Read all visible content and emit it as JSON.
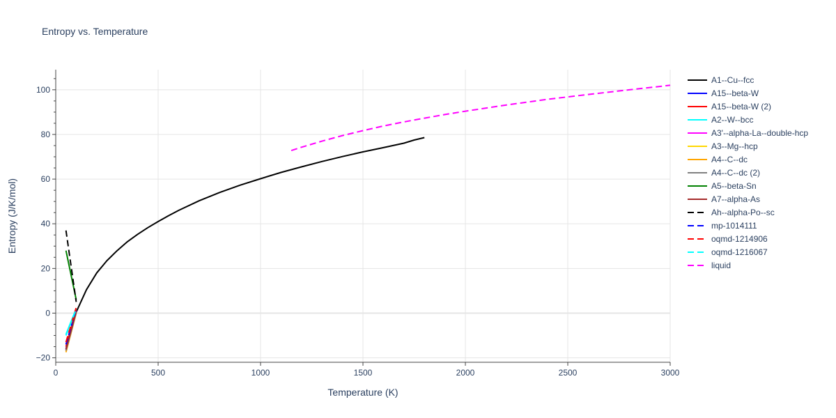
{
  "chart_data": {
    "type": "line",
    "title": "Entropy vs. Temperature",
    "xlabel": "Temperature (K)",
    "ylabel": "Entropy (J/K/mol)",
    "xlim": [
      0,
      3000
    ],
    "ylim": [
      -22,
      109
    ],
    "xticks": [
      0,
      500,
      1000,
      1500,
      2000,
      2500,
      3000
    ],
    "xtick_labels": [
      "0",
      "500",
      "1000",
      "1500",
      "2000",
      "2500",
      "3000"
    ],
    "yticks": [
      -20,
      0,
      20,
      40,
      60,
      80,
      100
    ],
    "ytick_labels": [
      "−20",
      "0",
      "20",
      "40",
      "60",
      "80",
      "100"
    ],
    "grid": true,
    "legend_position": "right",
    "series": [
      {
        "name": "A1--Cu--fcc",
        "color": "#000000",
        "dash": "solid",
        "x": [
          100,
          150,
          200,
          250,
          300,
          350,
          400,
          450,
          500,
          550,
          600,
          700,
          800,
          900,
          1000,
          1100,
          1200,
          1300,
          1400,
          1500,
          1600,
          1700,
          1750,
          1800
        ],
        "y": [
          0.5,
          10.5,
          18,
          23.5,
          28,
          32,
          35.3,
          38.3,
          41,
          43.6,
          46,
          50.3,
          54,
          57.3,
          60.2,
          63,
          65.5,
          67.9,
          70.1,
          72.2,
          74.1,
          76.1,
          77.5,
          78.6
        ]
      },
      {
        "name": "A15--beta-W",
        "color": "#0000ff",
        "dash": "solid",
        "x": [
          50,
          100
        ],
        "y": [
          -16,
          1
        ]
      },
      {
        "name": "A15--beta-W (2)",
        "color": "#ff0000",
        "dash": "solid",
        "x": [
          50,
          100
        ],
        "y": [
          -15,
          1.5
        ]
      },
      {
        "name": "A2--W--bcc",
        "color": "#00ffff",
        "dash": "solid",
        "x": [
          50,
          100
        ],
        "y": [
          -9.5,
          2
        ]
      },
      {
        "name": "A3'--alpha-La--double-hcp",
        "color": "#ff00ff",
        "dash": "solid",
        "x": [
          50,
          100
        ],
        "y": [
          -16.5,
          1
        ]
      },
      {
        "name": "A3--Mg--hcp",
        "color": "#ffd700",
        "dash": "solid",
        "x": [
          50,
          100
        ],
        "y": [
          -17,
          0.5
        ]
      },
      {
        "name": "A4--C--dc",
        "color": "#ffa500",
        "dash": "solid",
        "x": [
          50,
          100
        ],
        "y": [
          -17.5,
          0
        ]
      },
      {
        "name": "A4--C--dc (2)",
        "color": "#808080",
        "dash": "solid",
        "x": [
          50,
          100
        ],
        "y": [
          -16.8,
          0.3
        ]
      },
      {
        "name": "A5--beta-Sn",
        "color": "#008000",
        "dash": "solid",
        "x": [
          50,
          100
        ],
        "y": [
          28,
          6
        ]
      },
      {
        "name": "A7--alpha-As",
        "color": "#a52a2a",
        "dash": "solid",
        "x": [
          50,
          100
        ],
        "y": [
          -16.2,
          0.8
        ]
      },
      {
        "name": "Ah--alpha-Po--sc",
        "color": "#000000",
        "dash": "dash",
        "x": [
          50,
          100
        ],
        "y": [
          37,
          5
        ]
      },
      {
        "name": "mp-1014111",
        "color": "#0000ff",
        "dash": "dash",
        "x": [
          50,
          100
        ],
        "y": [
          -14,
          2
        ]
      },
      {
        "name": "oqmd-1214906",
        "color": "#ff0000",
        "dash": "dash",
        "x": [
          50,
          100
        ],
        "y": [
          -13,
          2.5
        ]
      },
      {
        "name": "oqmd-1216067",
        "color": "#00ffff",
        "dash": "dash",
        "x": [
          50,
          100
        ],
        "y": [
          -10,
          1.8
        ]
      },
      {
        "name": "liquid",
        "color": "#ff00ff",
        "dash": "dash",
        "x": [
          1150,
          1200,
          1300,
          1400,
          1500,
          1600,
          1700,
          1800,
          1900,
          2000,
          2200,
          2400,
          2600,
          2800,
          3000
        ],
        "y": [
          72.8,
          74.3,
          77,
          79.5,
          81.7,
          83.8,
          85.6,
          87.3,
          88.9,
          90.4,
          93.2,
          95.7,
          97.9,
          100.0,
          102.0
        ]
      }
    ]
  }
}
